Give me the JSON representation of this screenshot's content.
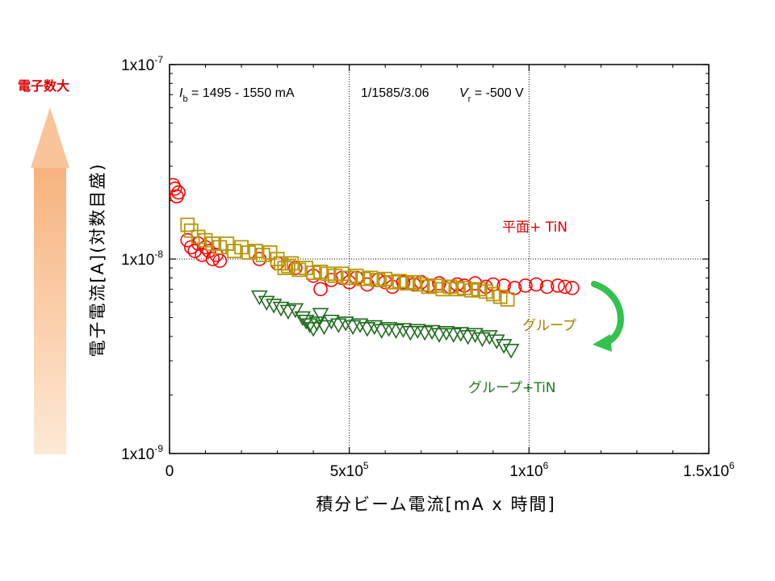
{
  "chart_data": {
    "type": "scatter",
    "title": "",
    "xlabel": "積分ビーム電流[mA x 時間]",
    "ylabel": "電子電流[A](対数目盛)",
    "xlim": [
      0,
      1500000
    ],
    "ylim": [
      1e-09,
      1e-07
    ],
    "yscale": "log",
    "grid": "dotted lines at x = 5x10^5, 1x10^6 and y = 1x10^-8",
    "x_ticks": [
      {
        "value": 0,
        "base": "0",
        "exp": ""
      },
      {
        "value": 500000,
        "base": "5x10",
        "exp": "5"
      },
      {
        "value": 1000000,
        "base": "1x10",
        "exp": "6"
      },
      {
        "value": 1500000,
        "base": "1.5x10",
        "exp": "6"
      }
    ],
    "y_ticks": [
      {
        "value": 1e-07,
        "base": "1x10",
        "exp": "-7"
      },
      {
        "value": 1e-08,
        "base": "1x10",
        "exp": "-8"
      },
      {
        "value": 1e-09,
        "base": "1x10",
        "exp": "-9"
      }
    ],
    "annotation": {
      "ib_symbol": "I",
      "ib_sub": "b",
      "ib_text": " = 1495 - 1550 mA",
      "mid_text": "1/1585/3.06",
      "vr_symbol": "V",
      "vr_sub": "r",
      "vr_text": " = -500 V"
    },
    "series": [
      {
        "name": "平面+ TiN",
        "color": "#ff0000",
        "marker": "circle",
        "points": [
          [
            10000,
            2.4e-08
          ],
          [
            15000,
            2.3e-08
          ],
          [
            20000,
            2.1e-08
          ],
          [
            25000,
            2.2e-08
          ],
          [
            50000,
            1.25e-08
          ],
          [
            60000,
            1.15e-08
          ],
          [
            70000,
            1.1e-08
          ],
          [
            80000,
            1.2e-08
          ],
          [
            90000,
            1.05e-08
          ],
          [
            100000,
            1.15e-08
          ],
          [
            110000,
            1.1e-08
          ],
          [
            120000,
            1e-08
          ],
          [
            130000,
            1.05e-08
          ],
          [
            140000,
            9.8e-09
          ],
          [
            250000,
            1e-08
          ],
          [
            300000,
            9.5e-09
          ],
          [
            350000,
            9e-09
          ],
          [
            400000,
            8.2e-09
          ],
          [
            420000,
            7e-09
          ],
          [
            450000,
            7.8e-09
          ],
          [
            480000,
            8e-09
          ],
          [
            500000,
            7.6e-09
          ],
          [
            520000,
            8e-09
          ],
          [
            550000,
            7.4e-09
          ],
          [
            580000,
            7.8e-09
          ],
          [
            600000,
            7.6e-09
          ],
          [
            620000,
            7.2e-09
          ],
          [
            650000,
            7.6e-09
          ],
          [
            680000,
            7.4e-09
          ],
          [
            700000,
            7.6e-09
          ],
          [
            720000,
            7.3e-09
          ],
          [
            750000,
            7.5e-09
          ],
          [
            780000,
            7.2e-09
          ],
          [
            800000,
            7.4e-09
          ],
          [
            820000,
            7.3e-09
          ],
          [
            850000,
            7.5e-09
          ],
          [
            880000,
            7.2e-09
          ],
          [
            900000,
            7.4e-09
          ],
          [
            930000,
            7.3e-09
          ],
          [
            960000,
            7.1e-09
          ],
          [
            990000,
            7.3e-09
          ],
          [
            1020000,
            7.4e-09
          ],
          [
            1050000,
            7.2e-09
          ],
          [
            1080000,
            7.3e-09
          ],
          [
            1100000,
            7.2e-09
          ],
          [
            1120000,
            7.1e-09
          ]
        ]
      },
      {
        "name": "グループ",
        "color": "#b8960a",
        "marker": "square",
        "points": [
          [
            50000,
            1.5e-08
          ],
          [
            60000,
            1.4e-08
          ],
          [
            80000,
            1.3e-08
          ],
          [
            100000,
            1.25e-08
          ],
          [
            120000,
            1.2e-08
          ],
          [
            140000,
            1.15e-08
          ],
          [
            160000,
            1.2e-08
          ],
          [
            180000,
            1.1e-08
          ],
          [
            200000,
            1.15e-08
          ],
          [
            220000,
            1.08e-08
          ],
          [
            240000,
            1.1e-08
          ],
          [
            260000,
            1.05e-08
          ],
          [
            280000,
            1.08e-08
          ],
          [
            300000,
            1e-08
          ],
          [
            310000,
            9.5e-09
          ],
          [
            320000,
            9e-09
          ],
          [
            330000,
            9.2e-09
          ],
          [
            340000,
            9.5e-09
          ],
          [
            360000,
            8.8e-09
          ],
          [
            380000,
            9e-09
          ],
          [
            400000,
            8.5e-09
          ],
          [
            420000,
            8.6e-09
          ],
          [
            440000,
            8.4e-09
          ],
          [
            460000,
            8.2e-09
          ],
          [
            480000,
            8.4e-09
          ],
          [
            500000,
            8e-09
          ],
          [
            520000,
            8.2e-09
          ],
          [
            540000,
            7.9e-09
          ],
          [
            560000,
            8e-09
          ],
          [
            580000,
            7.8e-09
          ],
          [
            600000,
            7.9e-09
          ],
          [
            620000,
            7.6e-09
          ],
          [
            640000,
            7.7e-09
          ],
          [
            660000,
            7.5e-09
          ],
          [
            680000,
            7.6e-09
          ],
          [
            700000,
            7.4e-09
          ],
          [
            720000,
            7.2e-09
          ],
          [
            740000,
            7.3e-09
          ],
          [
            760000,
            7e-09
          ],
          [
            780000,
            7.2e-09
          ],
          [
            800000,
            7e-09
          ],
          [
            820000,
            7.1e-09
          ],
          [
            840000,
            6.9e-09
          ],
          [
            860000,
            7e-09
          ],
          [
            880000,
            6.8e-09
          ],
          [
            900000,
            6.6e-09
          ],
          [
            920000,
            6.4e-09
          ],
          [
            940000,
            6.2e-09
          ]
        ]
      },
      {
        "name": "グループ+TiN",
        "color": "#1f6b1f",
        "marker": "triangle-down",
        "points": [
          [
            250000,
            6.4e-09
          ],
          [
            270000,
            6e-09
          ],
          [
            290000,
            5.8e-09
          ],
          [
            310000,
            5.6e-09
          ],
          [
            330000,
            5.4e-09
          ],
          [
            350000,
            5.5e-09
          ],
          [
            370000,
            5e-09
          ],
          [
            380000,
            4.8e-09
          ],
          [
            390000,
            4.6e-09
          ],
          [
            400000,
            4.4e-09
          ],
          [
            410000,
            4.7e-09
          ],
          [
            420000,
            5.2e-09
          ],
          [
            430000,
            4.5e-09
          ],
          [
            450000,
            4.8e-09
          ],
          [
            470000,
            4.6e-09
          ],
          [
            490000,
            4.7e-09
          ],
          [
            510000,
            4.5e-09
          ],
          [
            530000,
            4.6e-09
          ],
          [
            550000,
            4.4e-09
          ],
          [
            570000,
            4.5e-09
          ],
          [
            590000,
            4.3e-09
          ],
          [
            610000,
            4.4e-09
          ],
          [
            630000,
            4.3e-09
          ],
          [
            650000,
            4.35e-09
          ],
          [
            670000,
            4.2e-09
          ],
          [
            690000,
            4.3e-09
          ],
          [
            710000,
            4.2e-09
          ],
          [
            730000,
            4.25e-09
          ],
          [
            750000,
            4.1e-09
          ],
          [
            770000,
            4.2e-09
          ],
          [
            790000,
            4.1e-09
          ],
          [
            810000,
            4.15e-09
          ],
          [
            830000,
            4e-09
          ],
          [
            850000,
            4.1e-09
          ],
          [
            870000,
            3.9e-09
          ],
          [
            890000,
            4e-09
          ],
          [
            910000,
            3.8e-09
          ],
          [
            930000,
            3.6e-09
          ],
          [
            950000,
            3.4e-09
          ]
        ]
      }
    ],
    "series_labels": [
      {
        "text": "平面+ TiN",
        "color": "#e00000"
      },
      {
        "text": "グループ",
        "color": "#a08000"
      },
      {
        "text": "グループ+TiN",
        "color": "#1f7a1f"
      }
    ]
  },
  "side_label": {
    "text": "電子数大",
    "color": "#e00000"
  },
  "colors": {
    "arrow_light": "#fde9d6",
    "arrow_dark": "#f7b27d",
    "curve_arrow": "#33c24d"
  }
}
